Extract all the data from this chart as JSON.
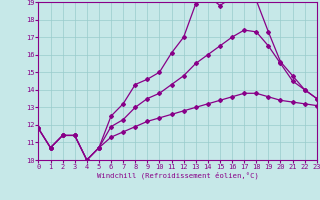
{
  "xlabel": "Windchill (Refroidissement éolien,°C)",
  "xlim": [
    0,
    23
  ],
  "ylim": [
    10,
    19
  ],
  "xticks": [
    0,
    1,
    2,
    3,
    4,
    5,
    6,
    7,
    8,
    9,
    10,
    11,
    12,
    13,
    14,
    15,
    16,
    17,
    18,
    19,
    20,
    21,
    22,
    23
  ],
  "yticks": [
    10,
    11,
    12,
    13,
    14,
    15,
    16,
    17,
    18,
    19
  ],
  "bg_color": "#c6e8e8",
  "line_color": "#880088",
  "grid_color": "#99cccc",
  "line1_y": [
    11.8,
    10.7,
    11.4,
    11.4,
    10.0,
    10.7,
    12.5,
    13.2,
    14.3,
    14.6,
    15.0,
    16.1,
    17.0,
    18.9,
    19.35,
    18.8,
    19.25,
    19.25,
    19.1,
    17.3,
    15.6,
    14.8,
    14.0,
    13.5
  ],
  "line2_y": [
    11.8,
    10.7,
    11.4,
    11.4,
    10.0,
    10.7,
    11.9,
    12.3,
    13.0,
    13.5,
    13.8,
    14.3,
    14.8,
    15.5,
    16.0,
    16.5,
    17.0,
    17.4,
    17.3,
    16.5,
    15.5,
    14.5,
    14.0,
    13.5
  ],
  "line3_y": [
    11.8,
    10.7,
    11.4,
    11.4,
    10.0,
    10.7,
    11.3,
    11.6,
    11.9,
    12.2,
    12.4,
    12.6,
    12.8,
    13.0,
    13.2,
    13.4,
    13.6,
    13.8,
    13.8,
    13.6,
    13.4,
    13.3,
    13.2,
    13.1
  ]
}
